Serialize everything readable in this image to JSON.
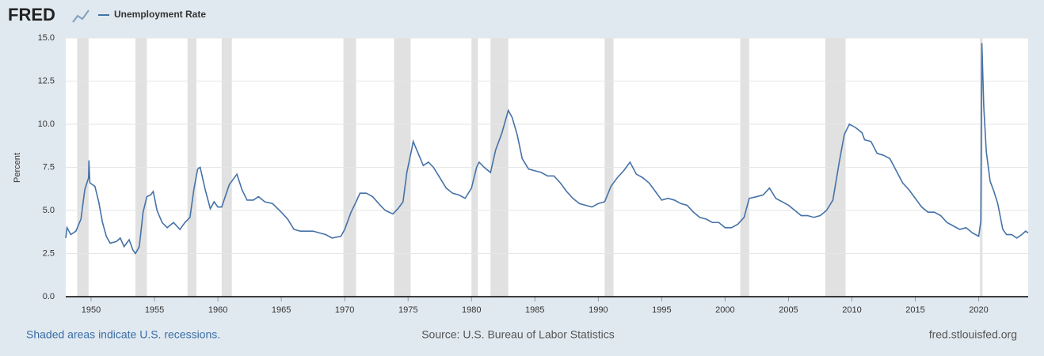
{
  "chart_data": {
    "type": "line",
    "logo": "FRED",
    "y_label": "Percent",
    "footer_left": "Shaded areas indicate U.S. recessions.",
    "source": "Source: U.S. Bureau of Labor Statistics",
    "site": "fred.stlouisfed.org",
    "xlim": [
      1948,
      2023.9
    ],
    "ylim": [
      0,
      15
    ],
    "xticks": [
      1950,
      1955,
      1960,
      1965,
      1970,
      1975,
      1980,
      1985,
      1990,
      1995,
      2000,
      2005,
      2010,
      2015,
      2020
    ],
    "yticks": [
      {
        "value": 0,
        "label": "0.0"
      },
      2.5,
      {
        "value": 5,
        "label": "5.0"
      },
      7.5,
      {
        "value": 10,
        "label": "10.0"
      },
      12.5,
      {
        "value": 15,
        "label": "15.0"
      }
    ],
    "grid": true,
    "recession_color": "#e1e1e1",
    "recessions": [
      [
        1948.9,
        1949.8
      ],
      [
        1953.5,
        1954.4
      ],
      [
        1957.6,
        1958.3
      ],
      [
        1960.3,
        1961.1
      ],
      [
        1969.9,
        1970.9
      ],
      [
        1973.9,
        1975.2
      ],
      [
        1980.0,
        1980.5
      ],
      [
        1981.5,
        1982.9
      ],
      [
        1990.5,
        1991.2
      ],
      [
        2001.2,
        2001.9
      ],
      [
        2007.9,
        2009.5
      ],
      [
        2020.1,
        2020.3
      ]
    ],
    "series": [
      {
        "name": "Unemployment Rate",
        "color": "#4572a7",
        "x": [
          1948.0,
          1948.1,
          1948.4,
          1948.8,
          1949.2,
          1949.5,
          1949.8,
          1949.83,
          1949.9,
          1950.3,
          1950.6,
          1950.9,
          1951.2,
          1951.5,
          1952.0,
          1952.3,
          1952.6,
          1953.0,
          1953.3,
          1953.5,
          1953.8,
          1954.1,
          1954.4,
          1954.7,
          1954.9,
          1955.2,
          1955.6,
          1956.0,
          1956.5,
          1957.0,
          1957.4,
          1957.8,
          1958.1,
          1958.4,
          1958.6,
          1959.0,
          1959.4,
          1959.7,
          1960.0,
          1960.3,
          1960.9,
          1961.3,
          1961.5,
          1961.9,
          1962.3,
          1962.8,
          1963.2,
          1963.7,
          1964.3,
          1965.0,
          1965.5,
          1966.0,
          1966.5,
          1967.0,
          1967.5,
          1968.0,
          1968.5,
          1969.0,
          1969.7,
          1970.0,
          1970.5,
          1970.9,
          1971.2,
          1971.7,
          1972.2,
          1972.8,
          1973.2,
          1973.8,
          1974.2,
          1974.6,
          1974.9,
          1975.3,
          1975.4,
          1975.8,
          1976.2,
          1976.6,
          1977.0,
          1977.5,
          1978.0,
          1978.5,
          1979.0,
          1979.5,
          1980.0,
          1980.4,
          1980.6,
          1981.0,
          1981.5,
          1981.9,
          1982.4,
          1982.9,
          1983.2,
          1983.6,
          1984.0,
          1984.5,
          1985.0,
          1985.5,
          1986.0,
          1986.5,
          1987.0,
          1987.5,
          1988.0,
          1988.5,
          1989.0,
          1989.5,
          1990.0,
          1990.5,
          1991.0,
          1991.5,
          1992.0,
          1992.5,
          1993.0,
          1993.5,
          1994.0,
          1994.5,
          1995.0,
          1995.5,
          1996.0,
          1996.5,
          1997.0,
          1997.5,
          1998.0,
          1998.5,
          1999.0,
          1999.5,
          2000.0,
          2000.5,
          2001.0,
          2001.5,
          2001.9,
          2002.5,
          2003.0,
          2003.5,
          2004.0,
          2004.5,
          2005.0,
          2005.5,
          2006.0,
          2006.5,
          2007.0,
          2007.5,
          2008.0,
          2008.5,
          2009.0,
          2009.4,
          2009.8,
          2010.3,
          2010.8,
          2011.0,
          2011.5,
          2012.0,
          2012.5,
          2013.0,
          2013.5,
          2014.0,
          2014.5,
          2015.0,
          2015.5,
          2016.0,
          2016.5,
          2017.0,
          2017.5,
          2018.0,
          2018.5,
          2019.0,
          2019.5,
          2020.0,
          2020.17,
          2020.25,
          2020.4,
          2020.6,
          2020.9,
          2021.2,
          2021.5,
          2021.9,
          2022.2,
          2022.6,
          2023.0,
          2023.4,
          2023.7,
          2023.9
        ],
        "values": [
          3.4,
          4.0,
          3.6,
          3.8,
          4.5,
          6.2,
          6.9,
          7.9,
          6.6,
          6.4,
          5.5,
          4.3,
          3.5,
          3.1,
          3.2,
          3.4,
          2.9,
          3.3,
          2.7,
          2.5,
          2.9,
          4.9,
          5.8,
          5.9,
          6.1,
          5.0,
          4.3,
          4.0,
          4.3,
          3.9,
          4.3,
          4.6,
          6.2,
          7.4,
          7.5,
          6.2,
          5.1,
          5.5,
          5.2,
          5.2,
          6.5,
          6.9,
          7.1,
          6.2,
          5.6,
          5.6,
          5.8,
          5.5,
          5.4,
          4.9,
          4.5,
          3.9,
          3.8,
          3.8,
          3.8,
          3.7,
          3.6,
          3.4,
          3.5,
          3.9,
          4.9,
          5.5,
          6.0,
          6.0,
          5.8,
          5.3,
          5.0,
          4.8,
          5.1,
          5.5,
          7.2,
          8.6,
          9.0,
          8.3,
          7.6,
          7.8,
          7.5,
          6.9,
          6.3,
          6.0,
          5.9,
          5.7,
          6.3,
          7.5,
          7.8,
          7.5,
          7.2,
          8.5,
          9.5,
          10.8,
          10.4,
          9.4,
          8.0,
          7.4,
          7.3,
          7.2,
          7.0,
          7.0,
          6.6,
          6.1,
          5.7,
          5.4,
          5.3,
          5.2,
          5.4,
          5.5,
          6.4,
          6.9,
          7.3,
          7.8,
          7.1,
          6.9,
          6.6,
          6.1,
          5.6,
          5.7,
          5.6,
          5.4,
          5.3,
          4.9,
          4.6,
          4.5,
          4.3,
          4.3,
          4.0,
          4.0,
          4.2,
          4.6,
          5.7,
          5.8,
          5.9,
          6.3,
          5.7,
          5.5,
          5.3,
          5.0,
          4.7,
          4.7,
          4.6,
          4.7,
          5.0,
          5.6,
          7.8,
          9.4,
          10.0,
          9.8,
          9.5,
          9.1,
          9.0,
          8.3,
          8.2,
          8.0,
          7.3,
          6.6,
          6.2,
          5.7,
          5.2,
          4.9,
          4.9,
          4.7,
          4.3,
          4.1,
          3.9,
          4.0,
          3.7,
          3.5,
          4.4,
          14.7,
          11.0,
          8.4,
          6.7,
          6.1,
          5.4,
          3.9,
          3.6,
          3.6,
          3.4,
          3.6,
          3.8,
          3.7
        ]
      }
    ]
  }
}
